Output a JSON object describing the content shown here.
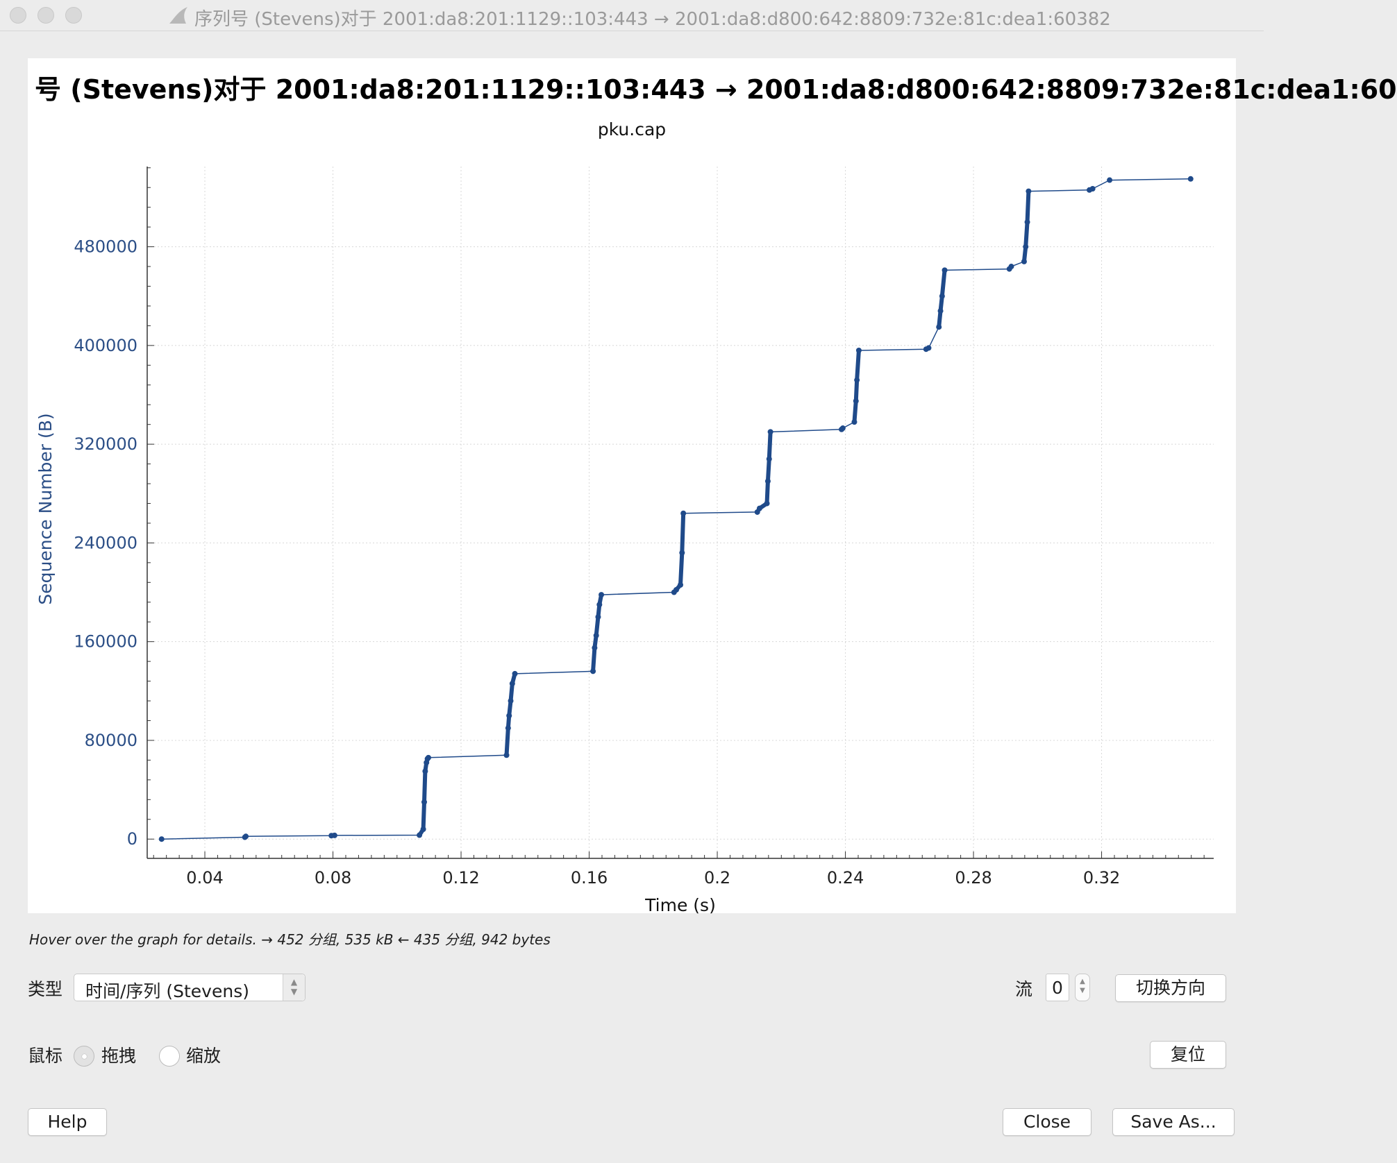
{
  "window": {
    "title": "序列号 (Stevens)对于 2001:da8:201:1129::103:443 → 2001:da8:d800:642:8809:732e:81c:dea1:60382"
  },
  "chart_data": {
    "type": "line",
    "title": "号 (Stevens)对于 2001:da8:201:1129::103:443 → 2001:da8:d800:642:8809:732e:81c:dea1:60",
    "subtitle": "pku.cap",
    "xlabel": "Time (s)",
    "ylabel": "Sequence Number (B)",
    "xlim": [
      0.022,
      0.355
    ],
    "ylim": [
      -10000,
      545000
    ],
    "x_ticks": [
      0.04,
      0.08,
      0.12,
      0.16,
      0.2,
      0.24,
      0.28,
      0.32
    ],
    "x_tick_labels": [
      "0.04",
      "0.08",
      "0.12",
      "0.16",
      "0.2",
      "0.24",
      "0.28",
      "0.32"
    ],
    "y_ticks": [
      0,
      80000,
      160000,
      240000,
      320000,
      400000,
      480000
    ],
    "y_tick_labels": [
      "0",
      "80000",
      "160000",
      "240000",
      "320000",
      "400000",
      "480000"
    ],
    "grid": true,
    "series_color": "#1f4a8a",
    "series": [
      {
        "x": [
          0.0265,
          0.0525,
          0.0528,
          0.0795,
          0.0805,
          0.107,
          0.1082,
          0.1085,
          0.1088,
          0.1092,
          0.1095,
          0.1098,
          0.1342,
          0.1347,
          0.135,
          0.1355,
          0.136,
          0.1368,
          0.1612,
          0.1617,
          0.1622,
          0.1628,
          0.1632,
          0.1638,
          0.1865,
          0.1872,
          0.1885,
          0.189,
          0.1894,
          0.2125,
          0.2132,
          0.2155,
          0.2158,
          0.2162,
          0.2166,
          0.2388,
          0.2392,
          0.2428,
          0.2433,
          0.2436,
          0.2442,
          0.2652,
          0.266,
          0.2692,
          0.2697,
          0.2702,
          0.271,
          0.2912,
          0.2918,
          0.2958,
          0.2963,
          0.2968,
          0.2972,
          0.3162,
          0.3172,
          0.3225,
          0.3478
        ],
        "y": [
          0,
          1500,
          2200,
          2800,
          3000,
          3200,
          8000,
          30000,
          55000,
          62000,
          65000,
          66000,
          68000,
          90000,
          100000,
          112000,
          126000,
          134000,
          136000,
          155000,
          165000,
          180000,
          190000,
          198000,
          200000,
          202000,
          206000,
          232000,
          264000,
          265000,
          268000,
          272000,
          290000,
          308000,
          330000,
          332000,
          333000,
          338000,
          355000,
          372000,
          396000,
          397000,
          398000,
          415000,
          428000,
          440000,
          461000,
          462000,
          464000,
          468000,
          480000,
          500000,
          525000,
          526000,
          527000,
          534000,
          535000
        ]
      }
    ]
  },
  "status": {
    "text": "Hover over the graph for details. → 452 分组, 535 kB ← 435 分组, 942 bytes"
  },
  "controls": {
    "type_label": "类型",
    "type_value": "时间/序列 (Stevens)",
    "stream_label": "流",
    "stream_value": "0",
    "switch_direction": "切换方向",
    "mouse_label": "鼠标",
    "drag_label": "拖拽",
    "zoom_label": "缩放",
    "reset": "复位",
    "help": "Help",
    "close": "Close",
    "save_as": "Save As..."
  }
}
